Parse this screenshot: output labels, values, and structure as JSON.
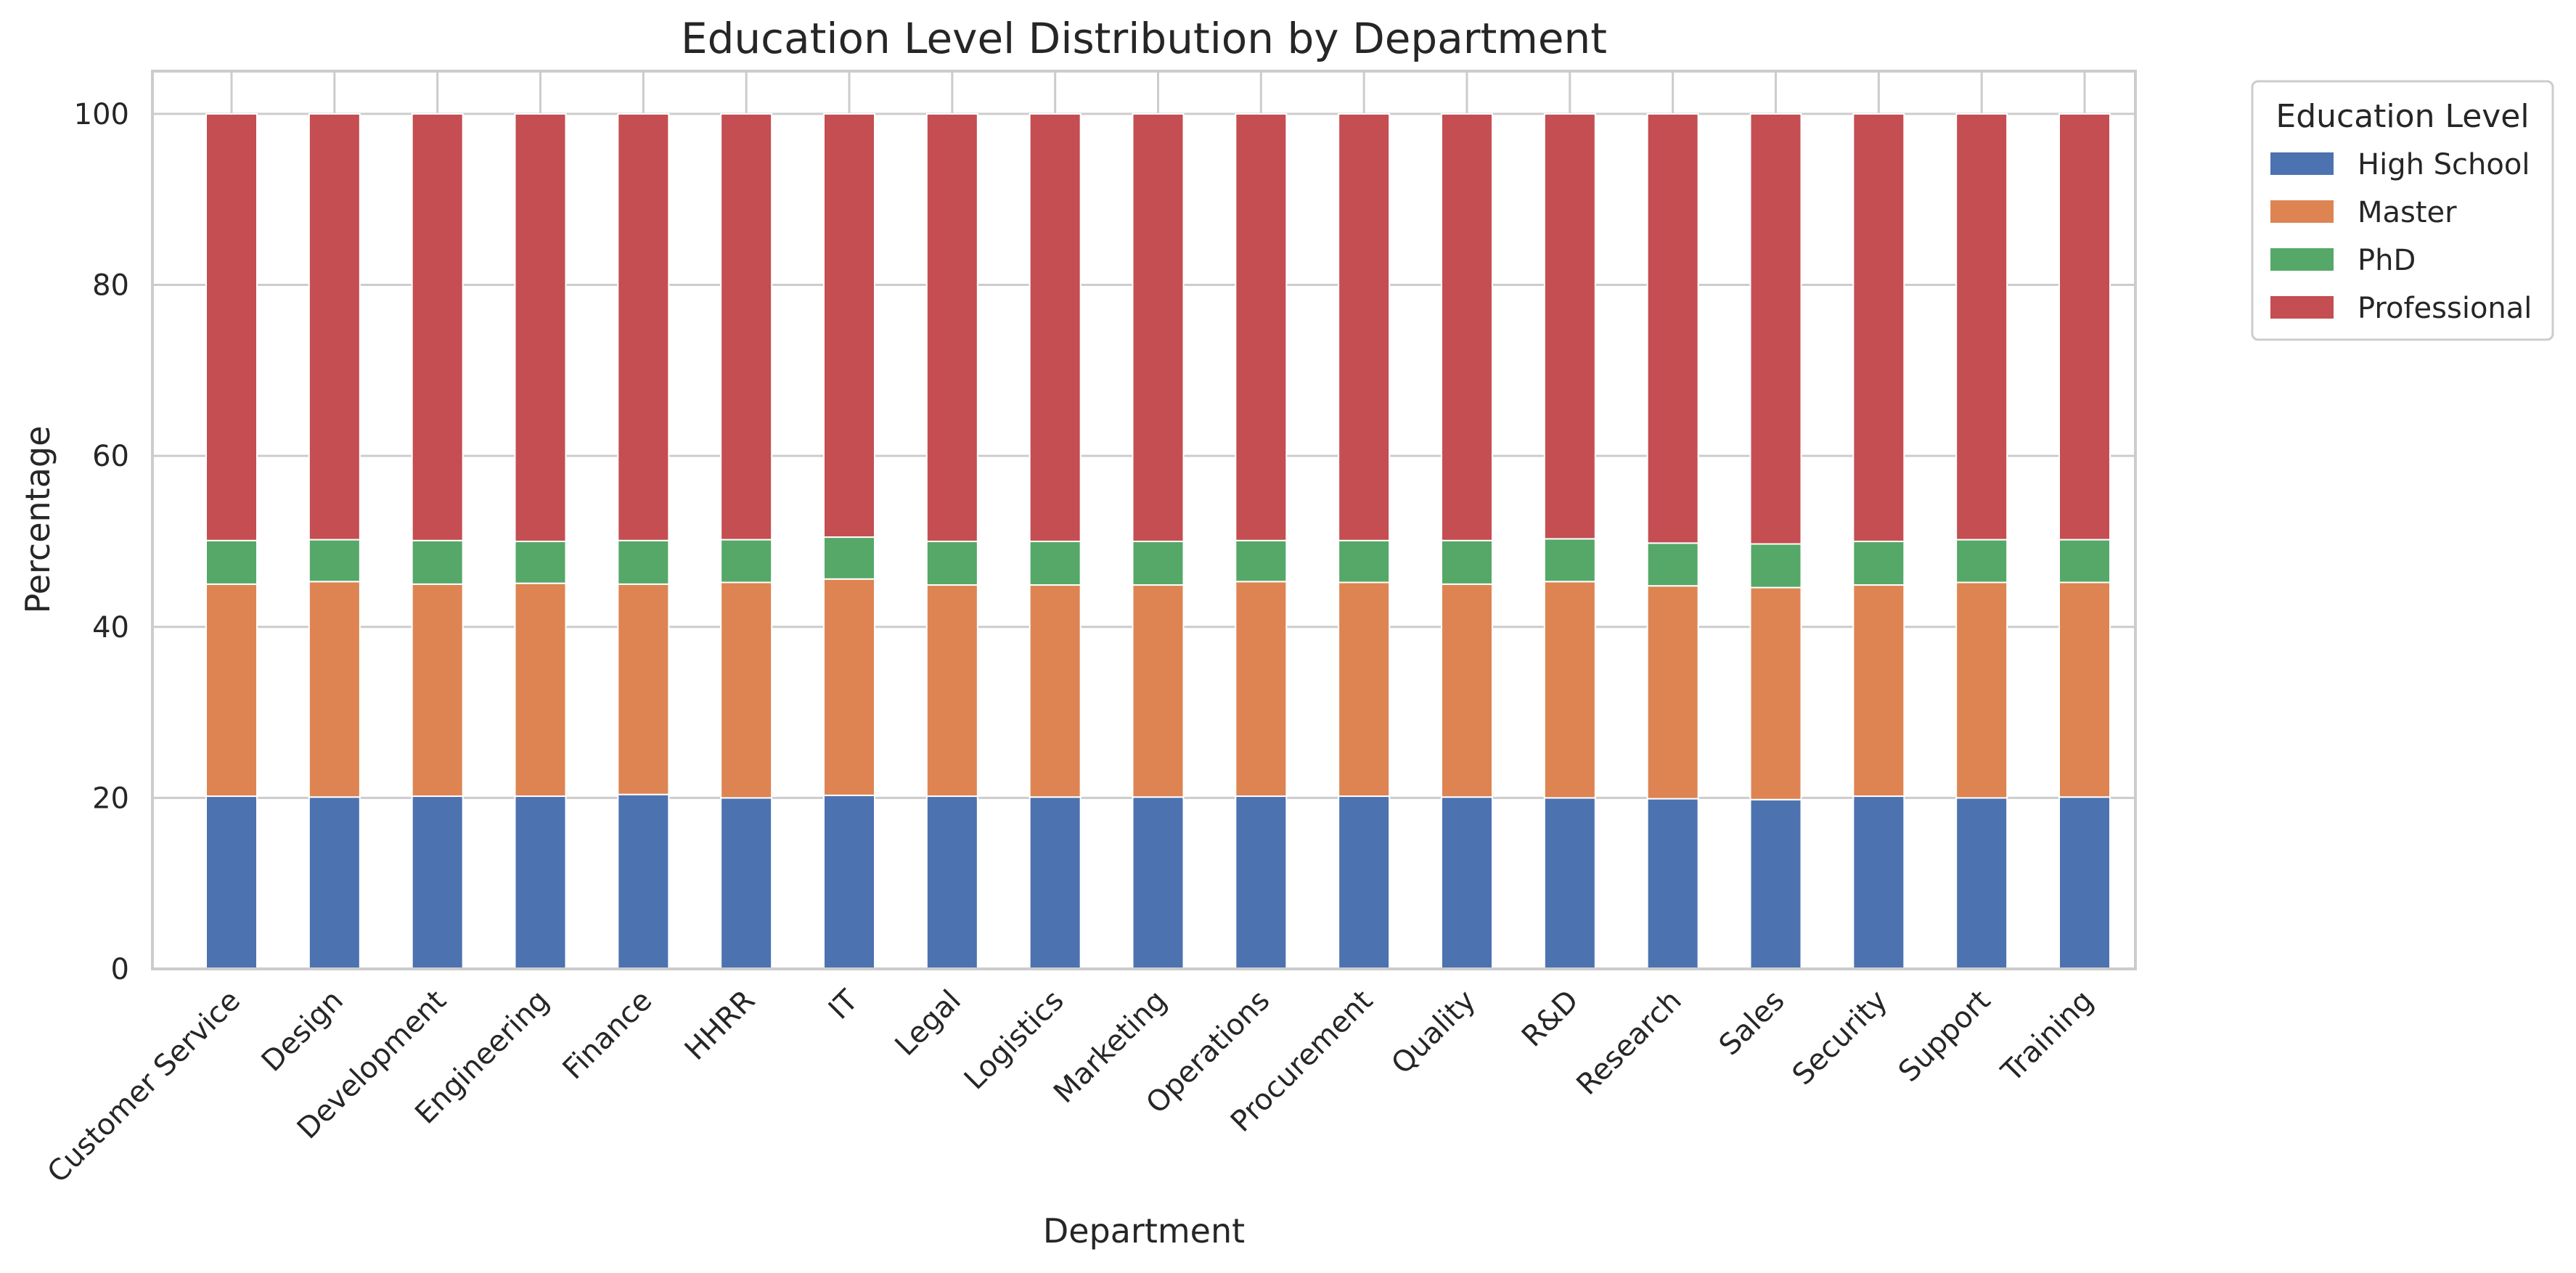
{
  "chart_data": {
    "type": "bar",
    "stacked": true,
    "title": "Education Level Distribution by Department",
    "xlabel": "Department",
    "ylabel": "Percentage",
    "ylim": [
      0,
      105
    ],
    "yticks": [
      0,
      20,
      40,
      60,
      80,
      100
    ],
    "grid": true,
    "legend": {
      "title": "Education Level",
      "placement": "outside right"
    },
    "categories": [
      "Customer Service",
      "Design",
      "Development",
      "Engineering",
      "Finance",
      "HHRR",
      "IT",
      "Legal",
      "Logistics",
      "Marketing",
      "Operations",
      "Procurement",
      "Quality",
      "R&D",
      "Research",
      "Sales",
      "Security",
      "Support",
      "Training"
    ],
    "series": [
      {
        "name": "High School",
        "color": "#4c72b0",
        "values": [
          20.2,
          20.1,
          20.2,
          20.2,
          20.4,
          20.0,
          20.3,
          20.2,
          20.1,
          20.1,
          20.2,
          20.2,
          20.1,
          20.0,
          19.9,
          19.8,
          20.2,
          20.0,
          20.1
        ]
      },
      {
        "name": "Master",
        "color": "#dd8452",
        "values": [
          24.8,
          25.2,
          24.8,
          24.9,
          24.6,
          25.2,
          25.3,
          24.7,
          24.8,
          24.8,
          25.1,
          25.0,
          24.9,
          25.3,
          24.9,
          24.8,
          24.7,
          25.2,
          25.1
        ]
      },
      {
        "name": "PhD",
        "color": "#55a868",
        "values": [
          5.1,
          4.9,
          5.1,
          4.9,
          5.1,
          5.0,
          4.9,
          5.1,
          5.1,
          5.1,
          4.8,
          4.9,
          5.1,
          5.0,
          5.0,
          5.1,
          5.1,
          5.0,
          5.0
        ]
      },
      {
        "name": "Professional",
        "color": "#c44e52",
        "values": [
          49.9,
          49.8,
          49.9,
          50.0,
          49.9,
          49.8,
          49.5,
          50.0,
          50.0,
          50.0,
          49.9,
          49.9,
          49.9,
          49.7,
          50.2,
          50.3,
          50.0,
          49.8,
          49.8
        ]
      }
    ]
  }
}
